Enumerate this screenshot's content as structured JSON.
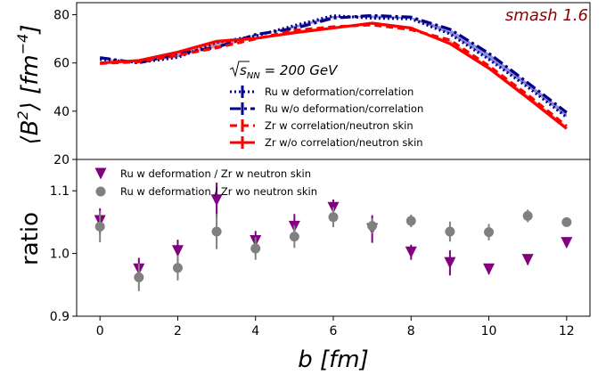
{
  "chart_data": [
    {
      "type": "line",
      "annotation": "smash 1.6",
      "annotation_color": "#8b0000",
      "legend_title": "√s_NN = 200 GeV",
      "legend_title_parts": {
        "s": "s",
        "sub": "NN",
        "rest": " = 200 GeV"
      },
      "legend_placement": "center",
      "ylabel_parts": {
        "left": "⟨B",
        "sup": "2",
        "mid": "⟩ [fm",
        "sup2": "−4",
        "right": "]"
      },
      "ylim": [
        20,
        85
      ],
      "yticks": [
        20,
        40,
        60,
        80
      ],
      "xlim": [
        -0.6,
        12.6
      ],
      "x": [
        0,
        1,
        2,
        3,
        4,
        5,
        6,
        7,
        8,
        9,
        10,
        11,
        12
      ],
      "band_colors": {
        "blue": "#7a7ad0",
        "red": "#f08a8a"
      },
      "series": [
        {
          "name": "Ru w deformation/correlation",
          "color": "#00008b",
          "dash": "2,3",
          "width": 3.2,
          "values": [
            61.5,
            60.2,
            62.3,
            68.5,
            71.2,
            75.5,
            79.6,
            78.6,
            78.3,
            72.0,
            61.5,
            50.0,
            37.5
          ]
        },
        {
          "name": "Ru w/o deformation/correlation",
          "color": "#00008b",
          "dash": "12,4,3,4",
          "width": 3.2,
          "values": [
            62.2,
            60.0,
            63.8,
            66.5,
            71.8,
            74.3,
            78.6,
            79.7,
            79.0,
            74.0,
            64.0,
            51.8,
            39.5
          ]
        },
        {
          "name": "Zr w correlation/neutron skin",
          "color": "#ff0000",
          "dash": "8,5",
          "width": 3.2,
          "values": [
            59.8,
            60.5,
            63.2,
            66.3,
            70.0,
            73.5,
            75.0,
            75.8,
            73.8,
            69.5,
            58.8,
            46.8,
            33.8
          ]
        },
        {
          "name": "Zr w/o correlation/neutron skin",
          "color": "#ff0000",
          "dash": "",
          "width": 3.2,
          "values": [
            60.0,
            61.0,
            64.5,
            69.0,
            70.2,
            72.5,
            74.5,
            76.5,
            74.5,
            68.0,
            57.8,
            45.5,
            32.8
          ]
        }
      ]
    },
    {
      "type": "scatter",
      "ylabel": "ratio",
      "xlabel_parts": {
        "b": "b",
        "rest": " [fm]"
      },
      "ylim": [
        0.9,
        1.15
      ],
      "yticks": [
        "0.9",
        "1.0",
        "1.1"
      ],
      "xlim": [
        -0.6,
        12.6
      ],
      "xticks": [
        "0",
        "2",
        "4",
        "6",
        "8",
        "10",
        "12"
      ],
      "legend_placement": "upper left",
      "series": [
        {
          "name": "Ru w deformation / Zr w neutron skin",
          "color": "#800080",
          "marker": "triangle-down",
          "x": [
            0,
            1,
            2,
            3,
            4,
            5,
            6,
            7,
            8,
            9,
            10,
            11,
            12
          ],
          "values": [
            1.052,
            0.975,
            1.004,
            1.085,
            1.02,
            1.043,
            1.073,
            1.039,
            1.002,
            0.985,
            0.975,
            0.99,
            1.017
          ],
          "errors": [
            0.02,
            0.018,
            0.018,
            0.028,
            0.016,
            0.02,
            0.013,
            0.022,
            0.012,
            0.02,
            0.008,
            0.008,
            0.006
          ]
        },
        {
          "name": "Ru w deformation / Zr wo neutron skin",
          "color": "#808080",
          "marker": "circle",
          "x": [
            0,
            1,
            2,
            3,
            4,
            5,
            6,
            7,
            8,
            9,
            10,
            11,
            12
          ],
          "values": [
            1.043,
            0.962,
            0.977,
            1.035,
            1.008,
            1.027,
            1.058,
            1.044,
            1.052,
            1.035,
            1.034,
            1.06,
            1.05
          ],
          "errors": [
            0.025,
            0.022,
            0.02,
            0.028,
            0.018,
            0.018,
            0.016,
            0.012,
            0.01,
            0.016,
            0.013,
            0.01,
            0.006
          ]
        }
      ]
    }
  ]
}
